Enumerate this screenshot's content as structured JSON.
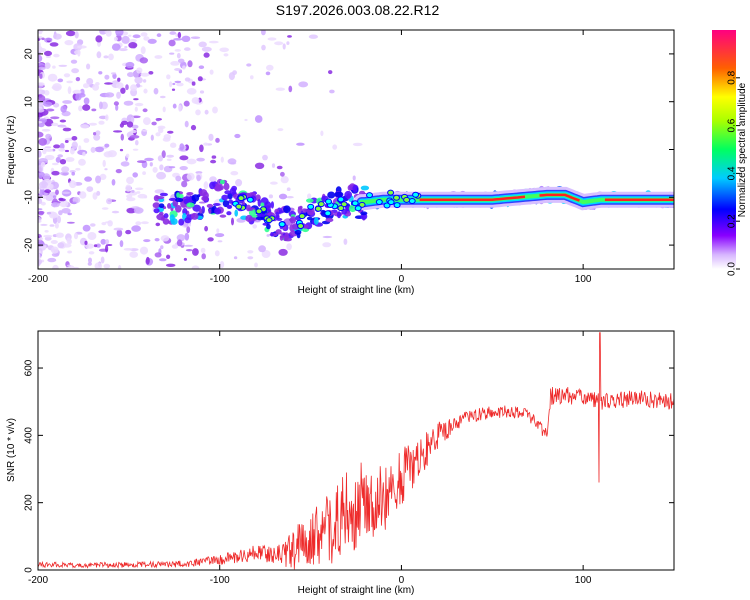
{
  "title": "S197.2026.003.08.22.R12",
  "colors": {
    "trace": "#ee2a2a",
    "axis": "#000000",
    "background": "#ffffff"
  },
  "chart_data": [
    {
      "type": "heatmap",
      "name": "spectrogram",
      "xlabel": "Height of straight line (km)",
      "ylabel": "Frequency (Hz)",
      "xlim": [
        -200,
        150
      ],
      "ylim": [
        -25,
        25
      ],
      "x_ticks": [
        -200,
        -100,
        0,
        100
      ],
      "y_ticks": [
        -20,
        -10,
        0,
        10,
        20
      ],
      "ridge": [
        {
          "x": -130,
          "y": -12.5
        },
        {
          "x": -110,
          "y": -11.5
        },
        {
          "x": -100,
          "y": -9.5
        },
        {
          "x": -90,
          "y": -11
        },
        {
          "x": -80,
          "y": -12
        },
        {
          "x": -70,
          "y": -15
        },
        {
          "x": -60,
          "y": -16
        },
        {
          "x": -50,
          "y": -13
        },
        {
          "x": -40,
          "y": -12
        },
        {
          "x": -30,
          "y": -11
        },
        {
          "x": -20,
          "y": -11
        },
        {
          "x": -10,
          "y": -10.5
        },
        {
          "x": 0,
          "y": -10.5
        },
        {
          "x": 20,
          "y": -10.5
        },
        {
          "x": 50,
          "y": -10.5
        },
        {
          "x": 80,
          "y": -9.5
        },
        {
          "x": 90,
          "y": -9.5
        },
        {
          "x": 100,
          "y": -11
        },
        {
          "x": 110,
          "y": -10.5
        },
        {
          "x": 150,
          "y": -10.5
        }
      ],
      "colorbar": {
        "label": "Normalized spectral amplitude",
        "range": [
          0,
          1
        ],
        "ticks": [
          0.0,
          0.2,
          0.4,
          0.6,
          0.8
        ],
        "tick_labels": [
          "0.0",
          "0.2",
          "0.4",
          "0.6",
          "0.8"
        ],
        "colormap": [
          "#ffffff",
          "#8800ff",
          "#0000ff",
          "#00ffff",
          "#00ff00",
          "#ffff00",
          "#ff0000",
          "#ff0080"
        ]
      }
    },
    {
      "type": "line",
      "name": "snr",
      "xlabel": "Height of straight line (km)",
      "ylabel": "SNR (10 * v/v)",
      "xlim": [
        -200,
        150
      ],
      "ylim": [
        0,
        710
      ],
      "x_ticks": [
        -200,
        -100,
        0,
        100
      ],
      "y_ticks": [
        0,
        200,
        400,
        600
      ],
      "series": [
        {
          "name": "SNR",
          "x": [
            -200,
            -150,
            -120,
            -100,
            -90,
            -80,
            -70,
            -60,
            -50,
            -40,
            -30,
            -20,
            -10,
            0,
            10,
            20,
            30,
            40,
            50,
            60,
            70,
            80,
            82,
            90,
            100,
            110,
            120,
            130,
            140,
            150
          ],
          "mean": [
            15,
            15,
            18,
            30,
            40,
            50,
            45,
            60,
            90,
            120,
            180,
            200,
            230,
            280,
            330,
            400,
            440,
            460,
            470,
            470,
            460,
            400,
            520,
            520,
            510,
            500,
            505,
            510,
            505,
            500
          ],
          "spread": [
            8,
            8,
            10,
            15,
            20,
            25,
            25,
            60,
            80,
            110,
            140,
            120,
            120,
            90,
            60,
            40,
            25,
            20,
            20,
            18,
            18,
            20,
            30,
            25,
            25,
            25,
            25,
            25,
            25,
            25
          ]
        }
      ]
    }
  ]
}
